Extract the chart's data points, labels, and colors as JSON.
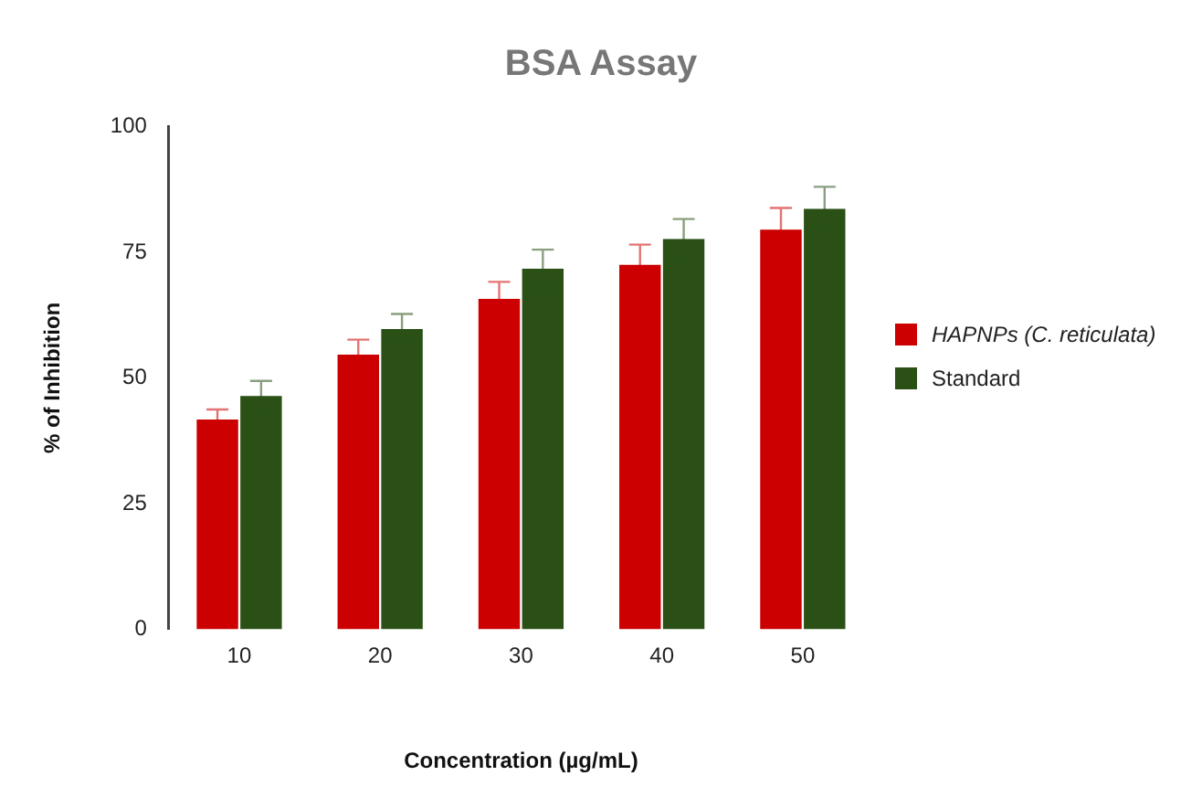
{
  "chart_data": {
    "type": "bar",
    "title": "BSA Assay",
    "xlabel": "Concentration (µg/mL)",
    "ylabel": "% of Inhibition",
    "categories": [
      "10",
      "20",
      "30",
      "40",
      "50"
    ],
    "series": [
      {
        "name": "HAPNPs (C. reticulata)",
        "color": "#cc0000",
        "values": [
          41.7,
          54.6,
          65.7,
          72.5,
          79.5
        ],
        "errors": [
          2,
          3,
          3.4,
          4,
          4.3
        ]
      },
      {
        "name": "Standard",
        "color": "#2a5016",
        "values": [
          46.4,
          59.7,
          71.7,
          77.6,
          83.6
        ],
        "errors": [
          3,
          3,
          3.8,
          4,
          4.4
        ]
      }
    ],
    "ylim": [
      0,
      100
    ],
    "yticks": [
      0,
      25,
      50,
      75,
      100
    ],
    "grid": false,
    "legend": "right"
  }
}
